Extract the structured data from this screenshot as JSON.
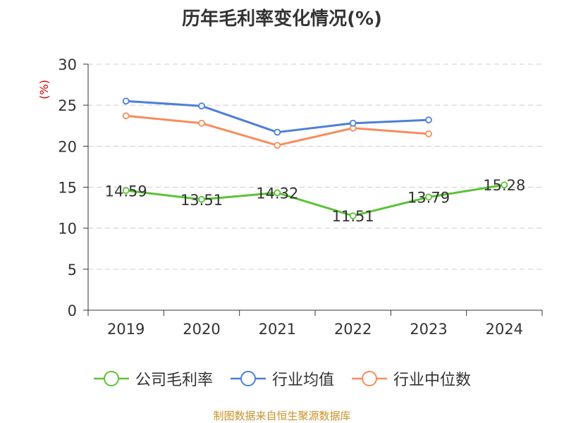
{
  "chart_data": {
    "type": "line",
    "title": "历年毛利率变化情况(%)",
    "ylabel": "(%)",
    "xlabel": "",
    "categories": [
      "2019",
      "2020",
      "2021",
      "2022",
      "2023",
      "2024"
    ],
    "ylim": [
      0,
      30
    ],
    "yticks": [
      0,
      5,
      10,
      15,
      20,
      25,
      30
    ],
    "grid": true,
    "legend_position": "bottom",
    "series": [
      {
        "name": "公司毛利率",
        "color": "#5bc236",
        "values": [
          14.59,
          13.51,
          14.32,
          11.51,
          13.79,
          15.28
        ],
        "data_labels": [
          "14.59",
          "13.51",
          "14.32",
          "11.51",
          "13.79",
          "15.28"
        ]
      },
      {
        "name": "行业均值",
        "color": "#4d7fd9",
        "values": [
          25.5,
          24.9,
          21.7,
          22.8,
          23.2,
          null
        ]
      },
      {
        "name": "行业中位数",
        "color": "#f78c5c",
        "values": [
          23.7,
          22.8,
          20.1,
          22.2,
          21.5,
          null
        ]
      }
    ]
  },
  "footer": "制图数据来自恒生聚源数据库"
}
